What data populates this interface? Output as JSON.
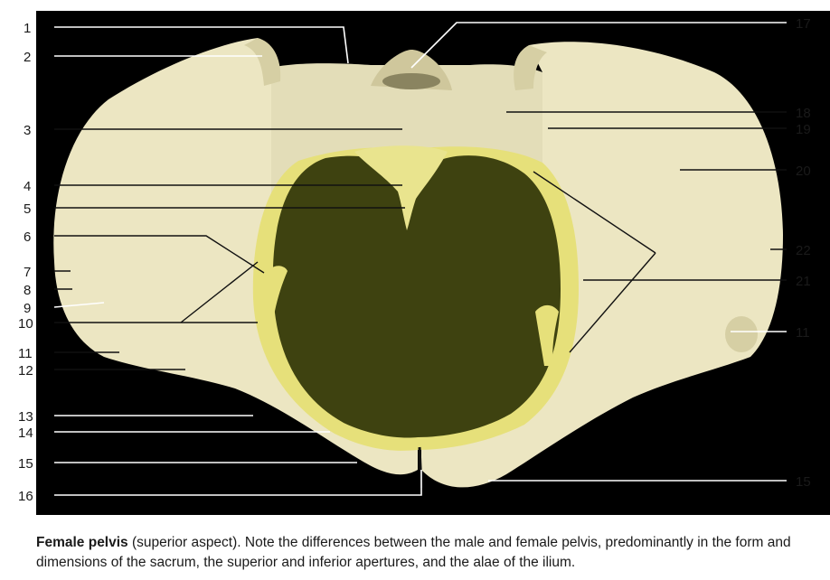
{
  "labels": {
    "l1": "1",
    "l2": "2",
    "l3": "3",
    "l4": "4",
    "l5": "5",
    "l6": "6",
    "l7": "7",
    "l8": "8",
    "l9": "9",
    "l10": "10",
    "l11a": "11",
    "l12": "12",
    "l13": "13",
    "l14": "14",
    "l15a": "15",
    "l16": "16",
    "l17": "17",
    "l18": "18",
    "l19": "19",
    "l20": "20",
    "l22": "22",
    "l21": "21",
    "l11b": "11",
    "l15b": "15"
  },
  "caption": {
    "title": "Female pelvis",
    "text": " (superior aspect). Note the differences between the male and female pelvis, predominantly in the form and dimensions of the sacrum, the superior and inferior apertures, and the alae of the ilium."
  },
  "colors": {
    "background": "#000000",
    "bone": "#ece6c2",
    "bone_shadow": "#d6cfa4",
    "inlet_rim": "#e6e07a",
    "pelvic_cavity": "#3e4210"
  }
}
